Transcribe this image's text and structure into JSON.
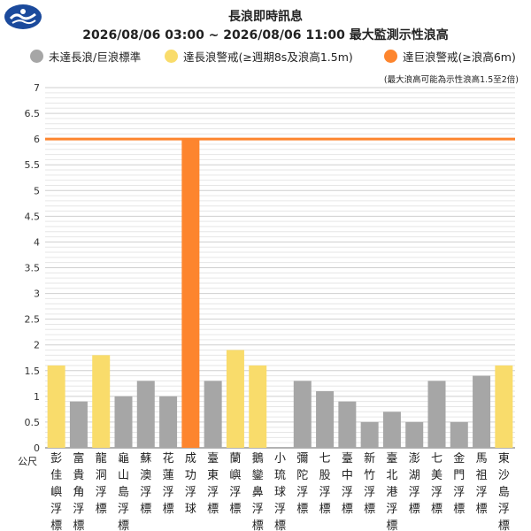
{
  "header": {
    "title": "長浪即時訊息",
    "subtitle": "2026/08/06 03:00 ~ 2026/08/06 11:00 最大監測示性浪高"
  },
  "logo": {
    "icon": "cwa-logo-icon"
  },
  "legend": [
    {
      "label": "未達長浪/巨浪標準",
      "color": "#a6a6a6"
    },
    {
      "label": "達長浪警戒(≥週期8s及浪高1.5m)",
      "color": "#f9dc6b"
    },
    {
      "label": "達巨浪警戒(≥浪高6m)",
      "color": "#fd852e"
    }
  ],
  "note": "(最大浪高可能為示性浪高1.5至2倍)",
  "chart_data": {
    "type": "bar",
    "ylabel": "公尺",
    "ylim": [
      0,
      7
    ],
    "yticks": [
      0,
      0.5,
      1,
      1.5,
      2,
      2.5,
      3,
      3.5,
      4,
      4.5,
      5,
      5.5,
      6,
      6.5,
      7
    ],
    "grid": true,
    "threshold_line": {
      "value": 6,
      "color": "#fd852e"
    },
    "categories": [
      "彭佳嶼浮標",
      "富貴角浮標",
      "龍洞浮標",
      "龜山島浮標",
      "蘇澳浮標",
      "花蓮浮標",
      "成功浮球",
      "臺東浮標",
      "蘭嶼浮標",
      "鵝鑾鼻浮標",
      "小琉球浮標",
      "彌陀浮標",
      "七股浮標",
      "臺中浮標",
      "新竹浮標",
      "臺北港浮標",
      "澎湖浮標",
      "七美浮標",
      "金門浮標",
      "馬祖浮標",
      "東沙島浮標"
    ],
    "values": [
      1.6,
      0.9,
      1.8,
      1.0,
      1.3,
      1.0,
      6.0,
      1.3,
      1.9,
      1.6,
      null,
      1.3,
      1.1,
      0.9,
      0.5,
      0.7,
      0.5,
      1.3,
      0.5,
      1.4,
      1.6
    ],
    "levels": [
      "warn",
      "normal",
      "warn",
      "normal",
      "normal",
      "normal",
      "huge",
      "normal",
      "warn",
      "warn",
      "none",
      "normal",
      "normal",
      "normal",
      "normal",
      "normal",
      "normal",
      "normal",
      "normal",
      "normal",
      "warn"
    ],
    "level_colors": {
      "normal": "#a6a6a6",
      "warn": "#f9dc6b",
      "huge": "#fd852e"
    }
  }
}
